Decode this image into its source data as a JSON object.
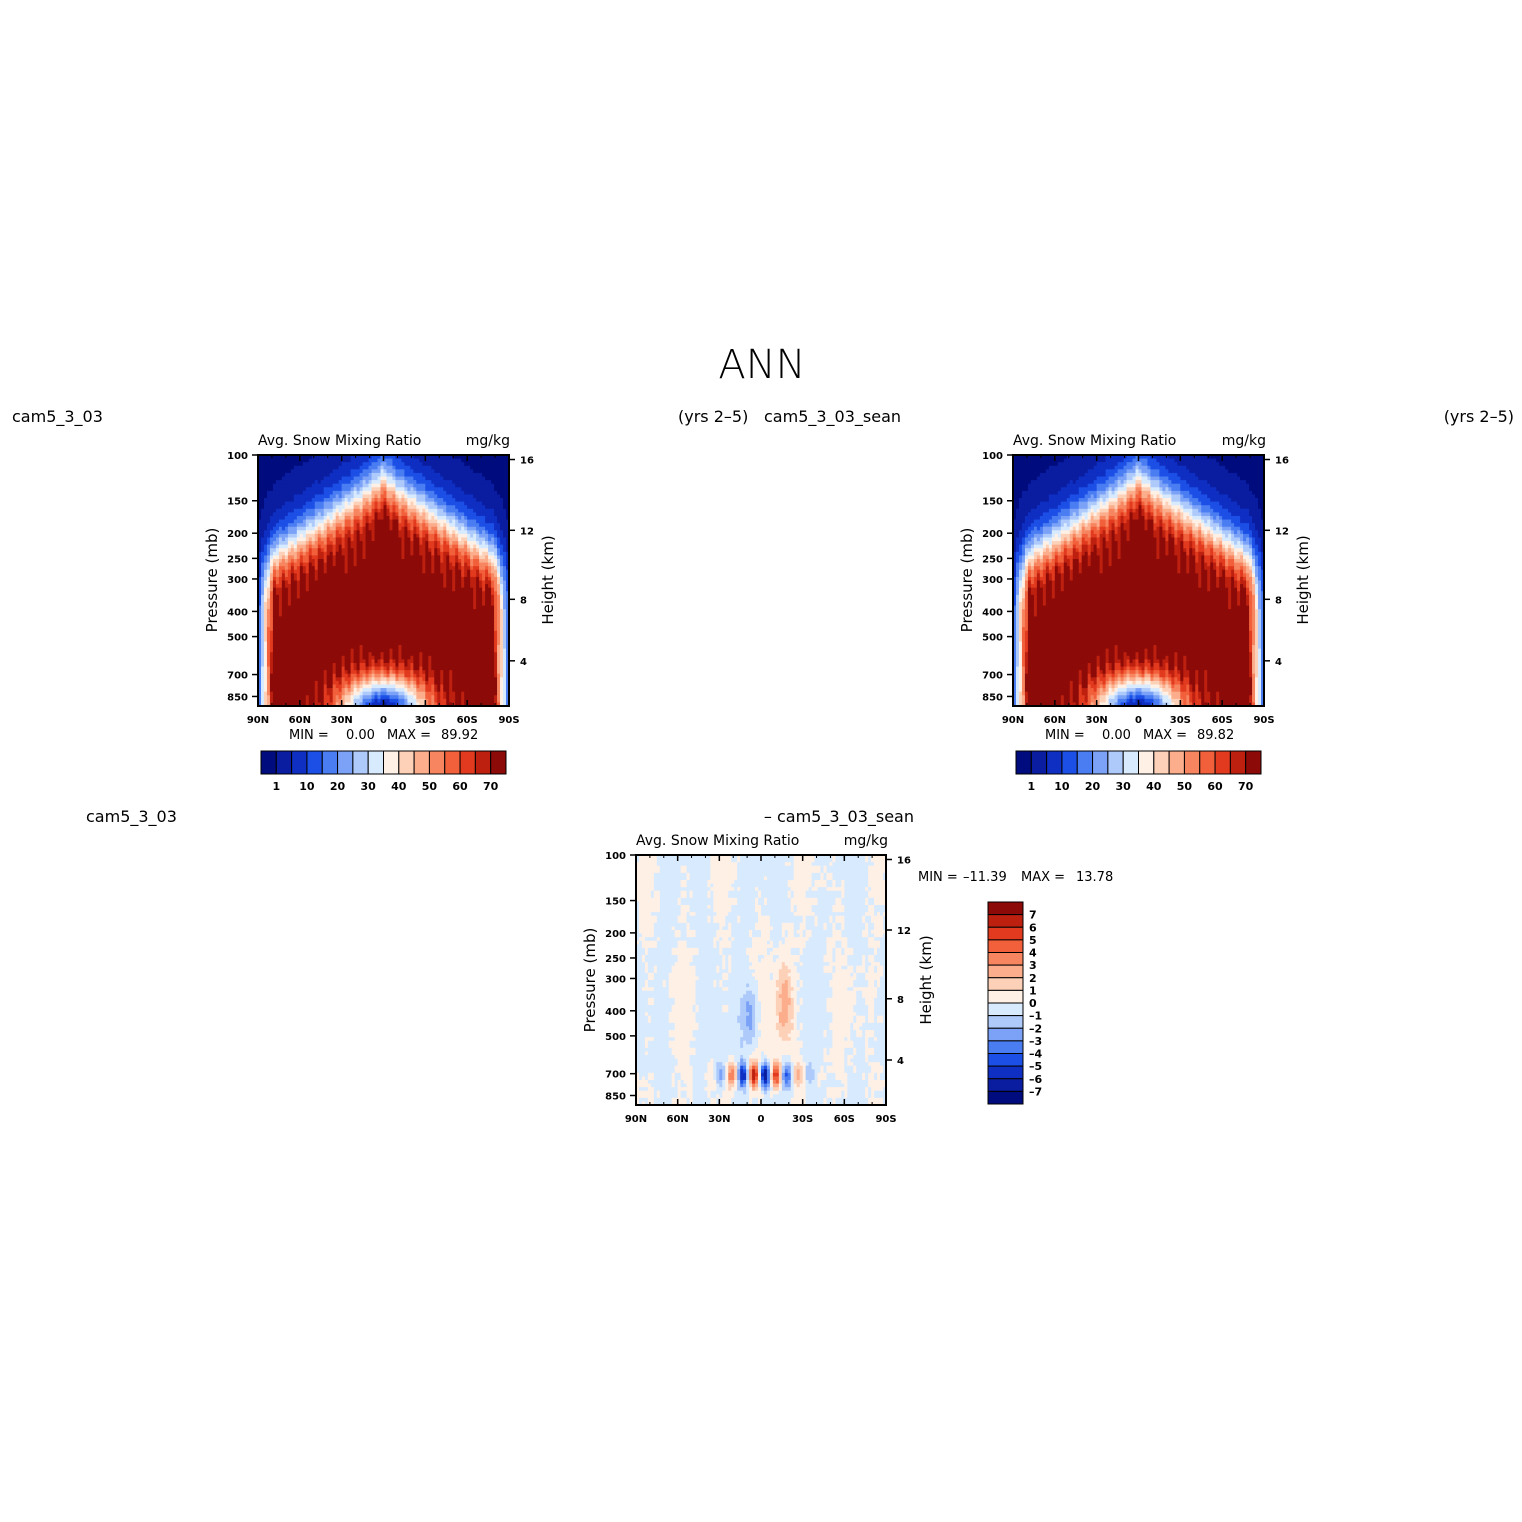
{
  "figure": {
    "title": "ANN",
    "case_left_label": "cam5_3_03",
    "case_left_years": "(yrs 2–5)",
    "case_right_label": "cam5_3_03_sean",
    "case_right_years": "(yrs 2–5)",
    "diff_left_label": "cam5_3_03",
    "diff_right_label": "– cam5_3_03_sean"
  },
  "colors": {
    "sequential": [
      "#000c7d",
      "#0a1da0",
      "#0f2fc3",
      "#1c4fe6",
      "#4a7cf2",
      "#7ba2f7",
      "#aecafb",
      "#d8eafe",
      "#fff0e5",
      "#fdd0b8",
      "#fbad8c",
      "#f78560",
      "#f1603b",
      "#e23a1e",
      "#be2010",
      "#8c0a08"
    ],
    "diverging": [
      "#000c7d",
      "#0a1da0",
      "#0f2fc3",
      "#1c4fe6",
      "#4a7cf2",
      "#7ba2f7",
      "#aecafb",
      "#d8eafe",
      "#fff0e5",
      "#fdd0b8",
      "#fbad8c",
      "#f78560",
      "#f1603b",
      "#e23a1e",
      "#be2010",
      "#8c0a08"
    ]
  },
  "chart_data": [
    {
      "type": "heatmap",
      "id": "model",
      "title_left": "Avg. Snow Mixing Ratio",
      "title_right": "mg/kg",
      "xlabel": "",
      "ylabel": "Pressure (mb)",
      "ylabel_right": "Height (km)",
      "x_ticks": [
        "90N",
        "60N",
        "30N",
        "0",
        "30S",
        "60S",
        "90S"
      ],
      "y_ticks": [
        "100",
        "150",
        "200",
        "250",
        "300",
        "400",
        "500",
        "700",
        "850"
      ],
      "y_right_ticks": [
        "16",
        "12",
        "8",
        "4"
      ],
      "stats": {
        "min_label": "MIN =",
        "min": "0.00",
        "max_label": "MAX =",
        "max": "89.92"
      },
      "colorbar_labels": [
        "1",
        "10",
        "20",
        "30",
        "40",
        "50",
        "60",
        "70"
      ],
      "max_value": 89.92
    },
    {
      "type": "heatmap",
      "id": "control",
      "title_left": "Avg. Snow Mixing Ratio",
      "title_right": "mg/kg",
      "xlabel": "",
      "ylabel": "Pressure (mb)",
      "ylabel_right": "Height (km)",
      "x_ticks": [
        "90N",
        "60N",
        "30N",
        "0",
        "30S",
        "60S",
        "90S"
      ],
      "y_ticks": [
        "100",
        "150",
        "200",
        "250",
        "300",
        "400",
        "500",
        "700",
        "850"
      ],
      "y_right_ticks": [
        "16",
        "12",
        "8",
        "4"
      ],
      "stats": {
        "min_label": "MIN =",
        "min": "0.00",
        "max_label": "MAX =",
        "max": "89.82"
      },
      "colorbar_labels": [
        "1",
        "10",
        "20",
        "30",
        "40",
        "50",
        "60",
        "70"
      ],
      "max_value": 89.82
    },
    {
      "type": "heatmap",
      "id": "difference",
      "title_left": "Avg. Snow Mixing Ratio",
      "title_right": "mg/kg",
      "xlabel": "",
      "ylabel": "Pressure (mb)",
      "ylabel_right": "Height (km)",
      "x_ticks": [
        "90N",
        "60N",
        "30N",
        "0",
        "30S",
        "60S",
        "90S"
      ],
      "y_ticks": [
        "100",
        "150",
        "200",
        "250",
        "300",
        "400",
        "500",
        "700",
        "850"
      ],
      "y_right_ticks": [
        "16",
        "12",
        "8",
        "4"
      ],
      "stats": {
        "min_label": "MIN =",
        "min": "–11.39",
        "max_label": "MAX =",
        "max": "13.78"
      },
      "colorbar_labels": [
        "7",
        "6",
        "5",
        "4",
        "3",
        "2",
        "1",
        "0",
        "–1",
        "–2",
        "–3",
        "–4",
        "–5",
        "–6",
        "–7"
      ]
    }
  ]
}
